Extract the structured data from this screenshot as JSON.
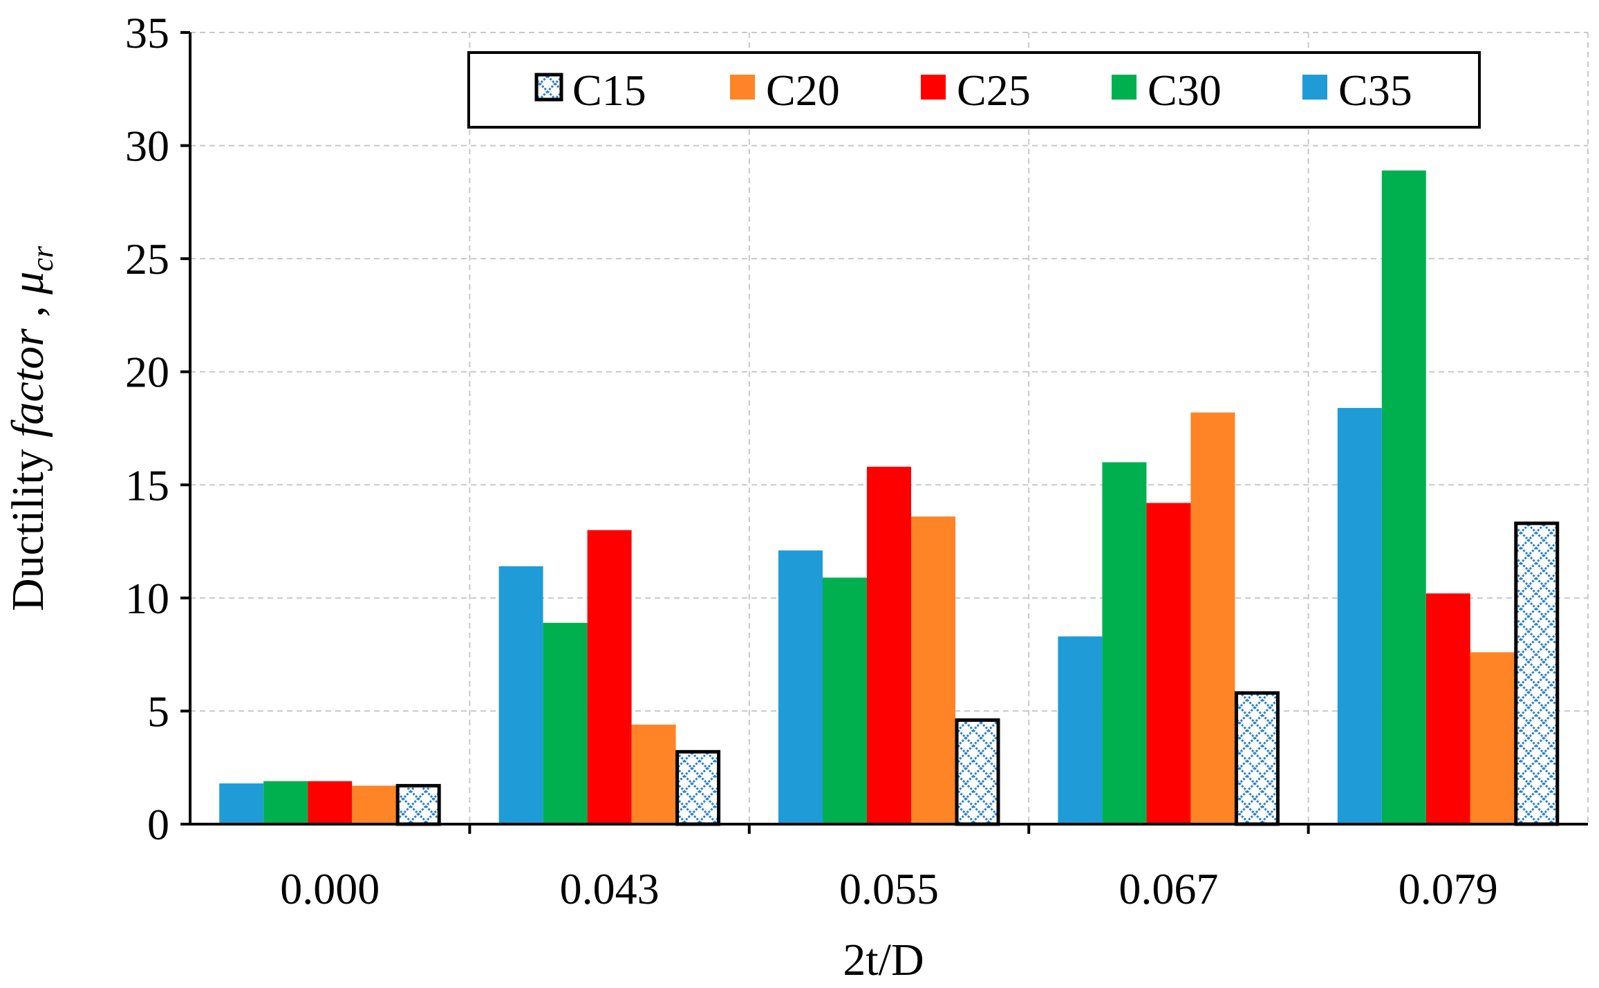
{
  "chart_data": {
    "type": "bar",
    "title": "",
    "xlabel": "2t/D",
    "ylabel": {
      "prefix": "Ductility ",
      "italic": "factor",
      "comma": " , ",
      "mu": "μ",
      "subscript": "cr"
    },
    "ylim": [
      0,
      35
    ],
    "y_ticks": [
      "0",
      "5",
      "10",
      "15",
      "20",
      "25",
      "30",
      "35"
    ],
    "grid": true,
    "legend_position": "top",
    "categories": [
      "0.000",
      "0.043",
      "0.055",
      "0.067",
      "0.079"
    ],
    "series": [
      {
        "name": "C15",
        "color": "#1f77c8",
        "pattern": "crosshatch",
        "values": [
          1.7,
          3.2,
          4.6,
          5.8,
          13.3
        ]
      },
      {
        "name": "C20",
        "color": "#ff8426",
        "values": [
          1.7,
          4.4,
          13.6,
          18.2,
          7.6
        ]
      },
      {
        "name": "C25",
        "color": "#ff0000",
        "values": [
          1.9,
          13.0,
          15.8,
          14.2,
          10.2
        ]
      },
      {
        "name": "C30",
        "color": "#00b04f",
        "values": [
          1.9,
          8.9,
          10.9,
          16.0,
          28.9
        ]
      },
      {
        "name": "C35",
        "color": "#1f9bd8",
        "values": [
          1.8,
          11.4,
          12.1,
          8.3,
          18.4
        ]
      }
    ],
    "bar_order": [
      "C35",
      "C30",
      "C25",
      "C20",
      "C15"
    ]
  }
}
